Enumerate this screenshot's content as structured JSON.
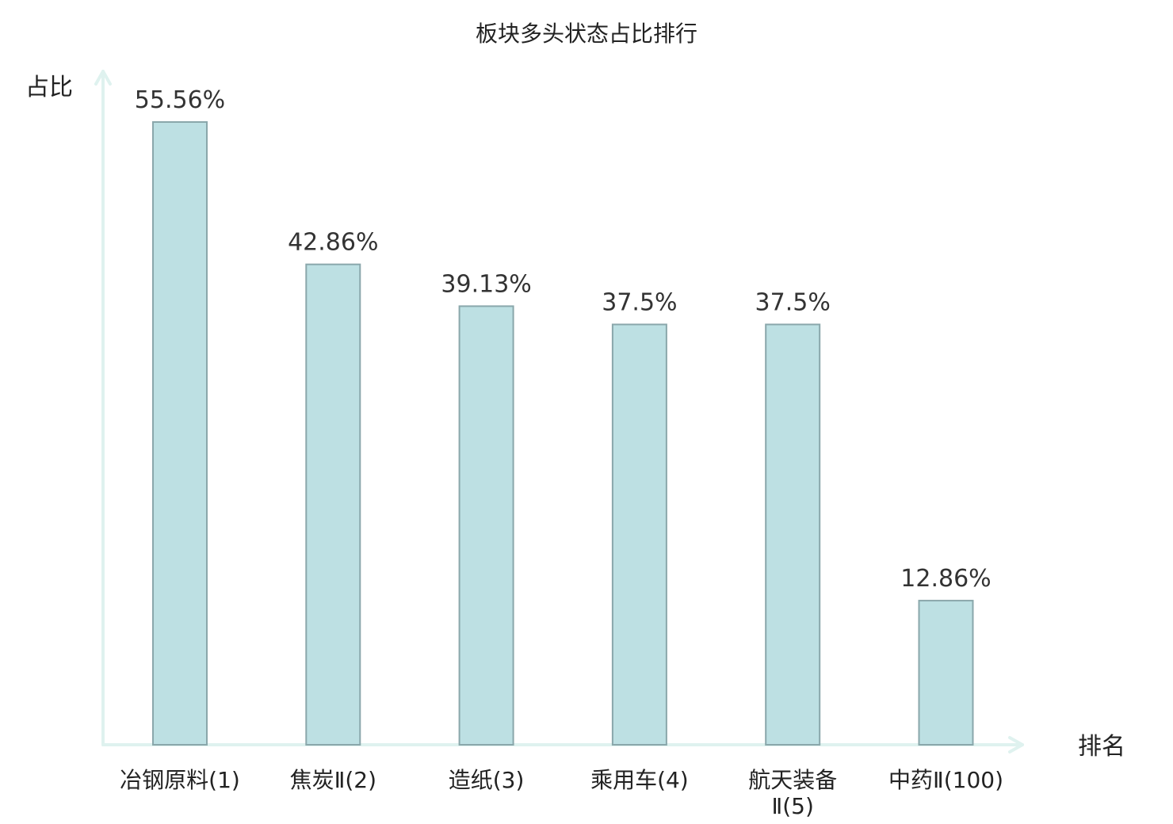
{
  "chart_data": {
    "type": "bar",
    "title": "板块多头状态占比排行",
    "ylabel": "占比",
    "xlabel": "排名",
    "unit": "%",
    "categories": [
      [
        "冶钢原料(1)"
      ],
      [
        "焦炭Ⅱ(2)"
      ],
      [
        "造纸(3)"
      ],
      [
        "乘用车(4)"
      ],
      [
        "航天装备",
        "Ⅱ(5)"
      ],
      [
        "中药Ⅱ(100)"
      ]
    ],
    "values": [
      55.56,
      42.86,
      39.13,
      37.5,
      37.5,
      12.86
    ],
    "value_labels": [
      "55.56%",
      "42.86%",
      "39.13%",
      "37.5%",
      "37.5%",
      "12.86%"
    ],
    "highlight_index": 5,
    "ylim": [
      0,
      60
    ],
    "grid": false,
    "legend": "none"
  },
  "colors": {
    "bar_fill": "#bde0e3",
    "bar_stroke": "#8aa7ab",
    "axis": "#dff2ef",
    "text": "#222222",
    "value_text": "#333333",
    "highlight_text": "#e8141a"
  }
}
